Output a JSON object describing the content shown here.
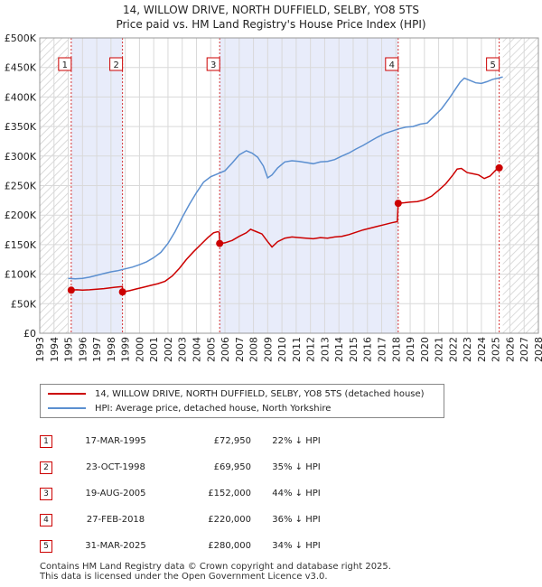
{
  "title_line1": "14, WILLOW DRIVE, NORTH DUFFIELD, SELBY, YO8 5TS",
  "title_line2": "Price paid vs. HM Land Registry's House Price Index (HPI)",
  "colors": {
    "property": "#cc0000",
    "hpi": "#5b8fd0",
    "shade": "#e8ecfa",
    "grid": "#d9d9d9"
  },
  "chart_data": {
    "type": "line",
    "ylim": [
      0,
      500000
    ],
    "xlim": [
      1993,
      2028
    ],
    "y_ticks": [
      0,
      50000,
      100000,
      150000,
      200000,
      250000,
      300000,
      350000,
      400000,
      450000,
      500000
    ],
    "y_tick_labels": [
      "£0",
      "£50K",
      "£100K",
      "£150K",
      "£200K",
      "£250K",
      "£300K",
      "£350K",
      "£400K",
      "£450K",
      "£500K"
    ],
    "x_ticks": [
      1993,
      1994,
      1995,
      1996,
      1997,
      1998,
      1999,
      2000,
      2001,
      2002,
      2003,
      2004,
      2005,
      2006,
      2007,
      2008,
      2009,
      2010,
      2011,
      2012,
      2013,
      2014,
      2015,
      2016,
      2017,
      2018,
      2019,
      2020,
      2021,
      2022,
      2023,
      2024,
      2025,
      2026,
      2027,
      2028
    ],
    "shaded_ranges": [
      [
        1995.21,
        1998.81
      ],
      [
        2005.63,
        2018.16
      ]
    ],
    "hatched_before": 1995.0,
    "hatched_after": 2025.5,
    "series": [
      {
        "name": "14, WILLOW DRIVE, NORTH DUFFIELD, SELBY, YO8 5TS (detached house)",
        "x": [
          1995.21,
          1995.6,
          1996.0,
          1996.5,
          1997.0,
          1997.5,
          1998.0,
          1998.5,
          1998.8,
          1998.81,
          1999.3,
          1999.8,
          2000.3,
          2000.8,
          2001.3,
          2001.8,
          2002.3,
          2002.8,
          2003.3,
          2003.8,
          2004.3,
          2004.8,
          2005.2,
          2005.5,
          2005.6,
          2005.63,
          2006.0,
          2006.5,
          2007.0,
          2007.5,
          2007.8,
          2008.2,
          2008.6,
          2009.0,
          2009.3,
          2009.7,
          2010.2,
          2010.7,
          2011.2,
          2011.7,
          2012.2,
          2012.7,
          2013.2,
          2013.7,
          2014.2,
          2014.7,
          2015.2,
          2015.7,
          2016.2,
          2016.7,
          2017.2,
          2017.7,
          2018.1,
          2018.16,
          2018.6,
          2019.0,
          2019.5,
          2020.0,
          2020.5,
          2021.0,
          2021.5,
          2022.0,
          2022.3,
          2022.6,
          2023.0,
          2023.4,
          2023.8,
          2024.2,
          2024.6,
          2025.0,
          2025.25,
          2025.5
        ],
        "values": [
          72950,
          73500,
          73000,
          73500,
          74500,
          75500,
          77000,
          78500,
          79000,
          69950,
          72000,
          75000,
          78000,
          81000,
          84000,
          88000,
          97000,
          110000,
          125000,
          138000,
          150000,
          162000,
          170000,
          172000,
          171000,
          152000,
          153000,
          157000,
          164000,
          170000,
          176000,
          172000,
          168000,
          155000,
          146000,
          155000,
          161000,
          163000,
          162000,
          161000,
          160000,
          162000,
          161000,
          163000,
          164000,
          167000,
          171000,
          175000,
          178000,
          181000,
          184000,
          187000,
          189000,
          220000,
          221000,
          222000,
          223000,
          226000,
          232000,
          242000,
          253000,
          268000,
          278000,
          279000,
          272000,
          270000,
          268000,
          262000,
          266000,
          276000,
          280000,
          280000
        ]
      },
      {
        "name": "HPI: Average price, detached house, North Yorkshire",
        "x": [
          1995.0,
          1995.5,
          1996.0,
          1996.5,
          1997.0,
          1997.5,
          1998.0,
          1998.5,
          1999.0,
          1999.5,
          2000.0,
          2000.5,
          2001.0,
          2001.5,
          2002.0,
          2002.5,
          2003.0,
          2003.5,
          2004.0,
          2004.5,
          2005.0,
          2005.5,
          2006.0,
          2006.5,
          2007.0,
          2007.5,
          2007.9,
          2008.3,
          2008.7,
          2009.0,
          2009.3,
          2009.7,
          2010.2,
          2010.7,
          2011.2,
          2011.7,
          2012.2,
          2012.7,
          2013.2,
          2013.7,
          2014.2,
          2014.7,
          2015.2,
          2015.7,
          2016.2,
          2016.7,
          2017.2,
          2017.7,
          2018.2,
          2018.7,
          2019.2,
          2019.7,
          2020.2,
          2020.7,
          2021.2,
          2021.7,
          2022.2,
          2022.5,
          2022.8,
          2023.2,
          2023.6,
          2024.0,
          2024.4,
          2024.8,
          2025.2,
          2025.5
        ],
        "values": [
          93000,
          92000,
          93000,
          95000,
          98000,
          101000,
          104000,
          106000,
          109000,
          112000,
          116000,
          121000,
          128000,
          137000,
          152000,
          172000,
          196000,
          218000,
          238000,
          256000,
          265000,
          270000,
          275000,
          288000,
          302000,
          309000,
          305000,
          298000,
          283000,
          263000,
          268000,
          280000,
          290000,
          292000,
          291000,
          289000,
          287000,
          290000,
          291000,
          294000,
          300000,
          305000,
          312000,
          318000,
          325000,
          332000,
          338000,
          342000,
          346000,
          349000,
          350000,
          354000,
          356000,
          368000,
          380000,
          396000,
          414000,
          425000,
          432000,
          428000,
          424000,
          423000,
          426000,
          430000,
          432000,
          434000
        ]
      }
    ],
    "sales": [
      {
        "label": "1",
        "x": 1995.21,
        "value": 72950,
        "date": "17-MAR-1995",
        "price": "£72,950",
        "hpi": "22% ↓ HPI"
      },
      {
        "label": "2",
        "x": 1998.81,
        "value": 69950,
        "date": "23-OCT-1998",
        "price": "£69,950",
        "hpi": "35% ↓ HPI"
      },
      {
        "label": "3",
        "x": 2005.63,
        "value": 152000,
        "date": "19-AUG-2005",
        "price": "£152,000",
        "hpi": "44% ↓ HPI"
      },
      {
        "label": "4",
        "x": 2018.16,
        "value": 220000,
        "date": "27-FEB-2018",
        "price": "£220,000",
        "hpi": "36% ↓ HPI"
      },
      {
        "label": "5",
        "x": 2025.25,
        "value": 280000,
        "date": "31-MAR-2025",
        "price": "£280,000",
        "hpi": "34% ↓ HPI"
      }
    ]
  },
  "legend": {
    "property_label": "14, WILLOW DRIVE, NORTH DUFFIELD, SELBY, YO8 5TS (detached house)",
    "hpi_label": "HPI: Average price, detached house, North Yorkshire"
  },
  "footer": {
    "line1": "Contains HM Land Registry data © Crown copyright and database right 2025.",
    "line2": "This data is licensed under the Open Government Licence v3.0."
  }
}
